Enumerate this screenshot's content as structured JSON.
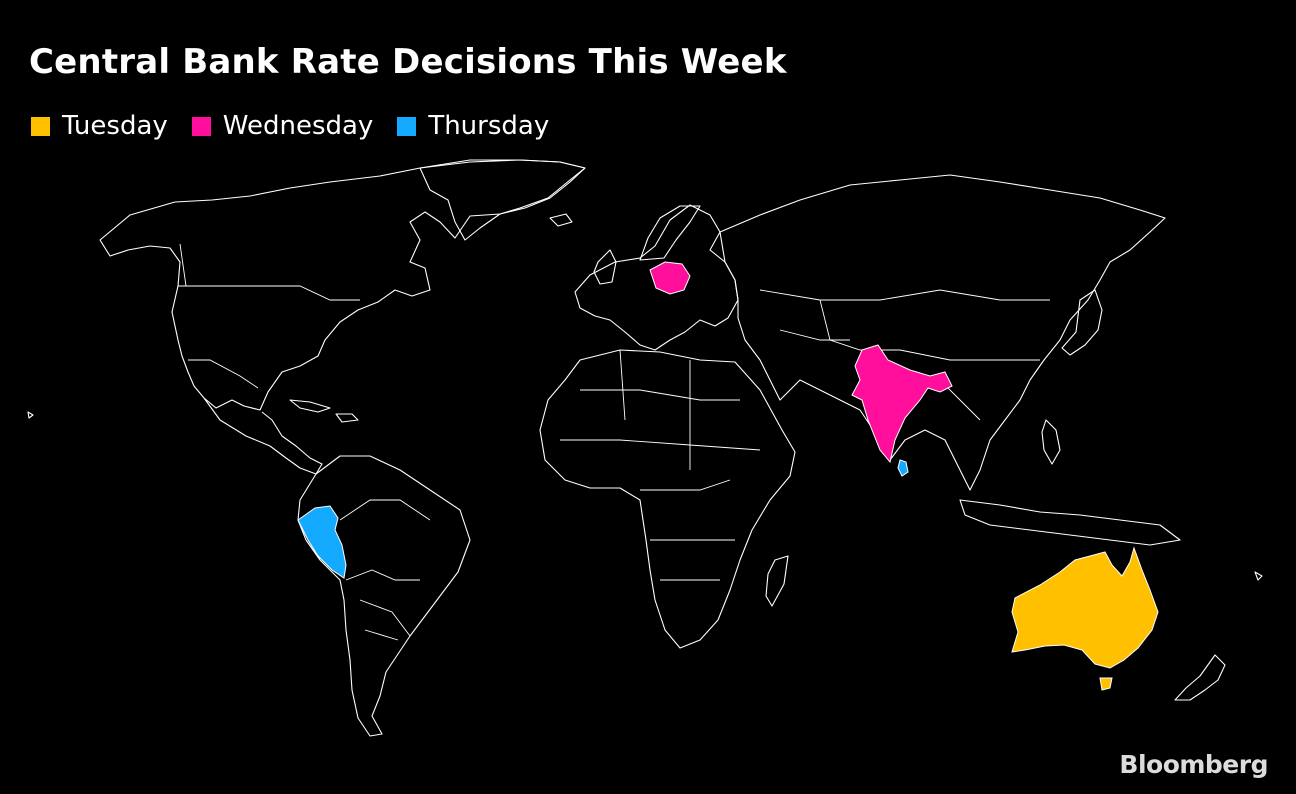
{
  "title": "Central Bank Rate Decisions This Week",
  "legend": [
    {
      "label": "Tuesday",
      "color": "#ffc000"
    },
    {
      "label": "Wednesday",
      "color": "#ff0f9b"
    },
    {
      "label": "Thursday",
      "color": "#14aaff"
    }
  ],
  "highlighted_countries": [
    {
      "country": "Australia",
      "day": "Tuesday",
      "color": "#ffc000"
    },
    {
      "country": "Poland",
      "day": "Wednesday",
      "color": "#ff0f9b"
    },
    {
      "country": "India",
      "day": "Wednesday",
      "color": "#ff0f9b"
    },
    {
      "country": "Peru",
      "day": "Thursday",
      "color": "#14aaff"
    },
    {
      "country": "Sri Lanka",
      "day": "Thursday",
      "color": "#14aaff"
    }
  ],
  "brand": "Bloomberg"
}
